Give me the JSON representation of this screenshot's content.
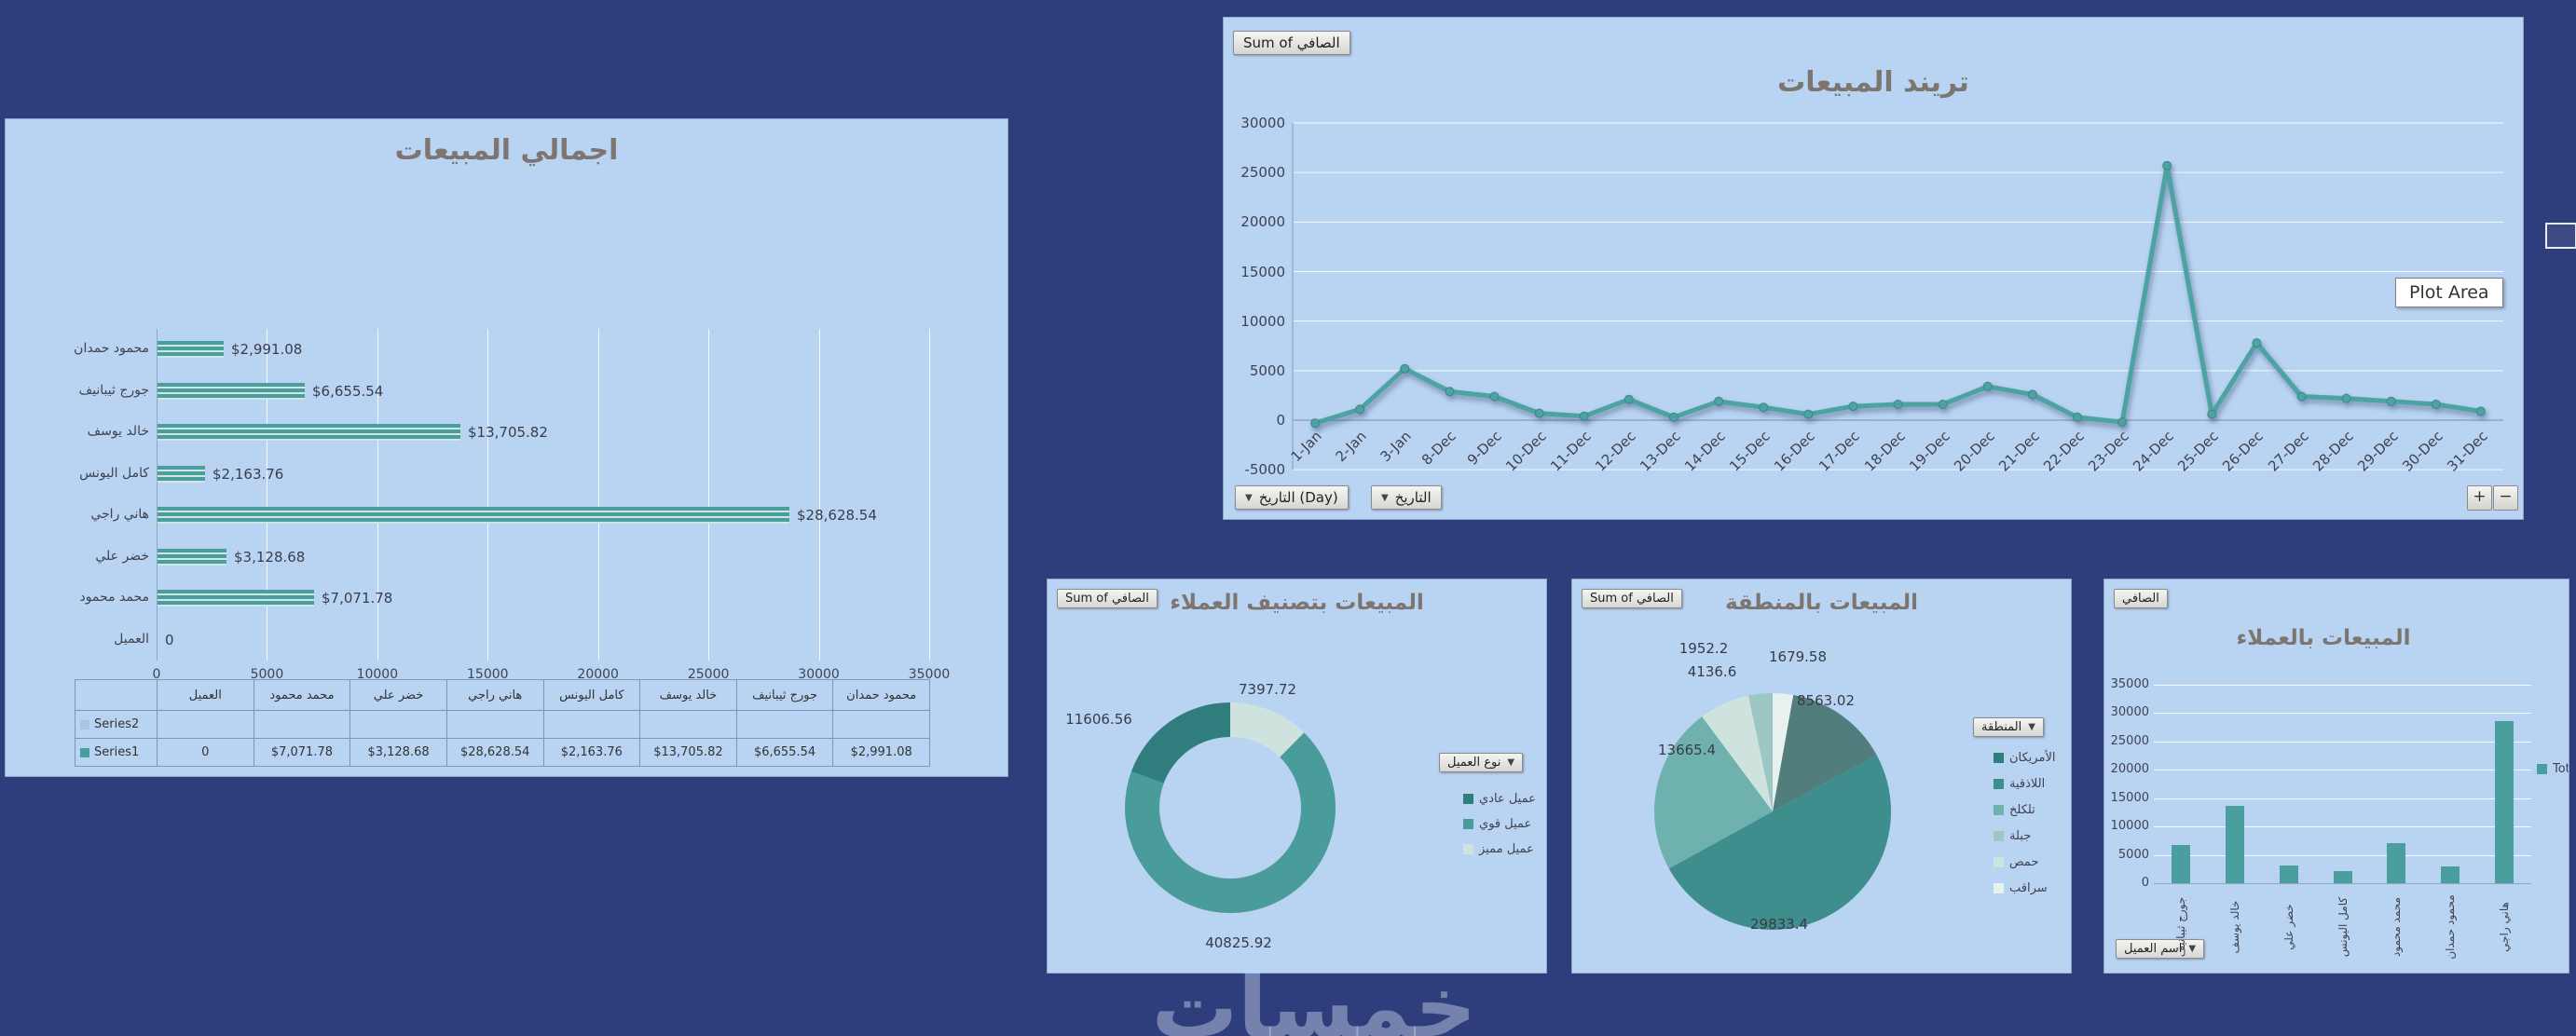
{
  "colors": {
    "background": "#2e3e7c",
    "panel": "#b9d3f2",
    "teal": "#4b9e9e",
    "teal_dark": "#2f7d7c",
    "teal_light": "#cfe3de",
    "title_text": "#7d756f"
  },
  "ui": {
    "watermark": "خمسات",
    "plot_area_tooltip": "Plot Area",
    "zoom_in": "+",
    "zoom_out": "−"
  },
  "chart_data": [
    {
      "id": "bar",
      "type": "bar",
      "orientation": "horizontal",
      "title": "اجمالي المبيعات",
      "categories": [
        "محمود حمدان",
        "جورج ثيبانيف",
        "خالد يوسف",
        "كامل اليونس",
        "هاني راجي",
        "خضر علي",
        "محمد محمود",
        "العميل"
      ],
      "values": [
        2991.08,
        6655.54,
        13705.82,
        2163.76,
        28628.54,
        3128.68,
        7071.78,
        0
      ],
      "value_labels": [
        "$2,991.08",
        "$6,655.54",
        "$13,705.82",
        "$2,163.76",
        "$28,628.54",
        "$3,128.68",
        "$7,071.78",
        "0"
      ],
      "x_ticks": [
        0,
        5000,
        10000,
        15000,
        20000,
        25000,
        30000,
        35000
      ],
      "xlim": [
        0,
        35000
      ],
      "table": {
        "corner": "",
        "columns": [
          "العميل",
          "محمد محمود",
          "خضر علي",
          "هاني راجي",
          "كامل اليونس",
          "خالد يوسف",
          "جورج ثيبانيف",
          "محمود حمدان"
        ],
        "series": [
          {
            "name": "Series2",
            "marker_color": "#a9c3e0",
            "values": [
              "",
              "",
              "",
              "",
              "",
              "",
              "",
              ""
            ]
          },
          {
            "name": "Series1",
            "marker_color": "#4b9e9e",
            "values": [
              "0",
              "$7,071.78",
              "$3,128.68",
              "$28,628.54",
              "$2,163.76",
              "$13,705.82",
              "$6,655.54",
              "$2,991.08"
            ]
          }
        ]
      }
    },
    {
      "id": "line",
      "type": "line",
      "title": "تريند المبيعات",
      "field_button": "Sum of الصافي",
      "axis_field_buttons": [
        "التاريخ (Day)",
        "التاريخ"
      ],
      "y_ticks": [
        30000,
        25000,
        20000,
        15000,
        10000,
        5000,
        0,
        -5000
      ],
      "ylim": [
        -5000,
        30000
      ],
      "x": [
        "1-Jan",
        "2-Jan",
        "3-Jan",
        "8-Dec",
        "9-Dec",
        "10-Dec",
        "11-Dec",
        "12-Dec",
        "13-Dec",
        "14-Dec",
        "15-Dec",
        "16-Dec",
        "17-Dec",
        "18-Dec",
        "19-Dec",
        "20-Dec",
        "21-Dec",
        "22-Dec",
        "23-Dec",
        "24-Dec",
        "25-Dec",
        "26-Dec",
        "27-Dec",
        "28-Dec",
        "29-Dec",
        "30-Dec",
        "31-Dec"
      ],
      "values": [
        -300,
        1100,
        5200,
        2900,
        2400,
        700,
        400,
        2100,
        300,
        1900,
        1300,
        600,
        1400,
        1600,
        1600,
        3400,
        2600,
        300,
        -200,
        25700,
        600,
        7800,
        2400,
        2200,
        1900,
        1600,
        900
      ]
    },
    {
      "id": "donut",
      "type": "pie",
      "donut": true,
      "title": "المبيعات بتصنيف العملاء",
      "field_button": "Sum of الصافي",
      "legend_button": "نوع العميل",
      "slices": [
        {
          "label": "7397.72",
          "value": 7397.72,
          "color": "#cfe3de"
        },
        {
          "label": "40825.92",
          "value": 40825.92,
          "color": "#4a9c9b"
        },
        {
          "label": "11606.56",
          "value": 11606.56,
          "color": "#2f7d7c"
        }
      ],
      "legend": [
        {
          "label": "عميل عادي",
          "color": "#2f7d7c"
        },
        {
          "label": "عميل قوي",
          "color": "#4a9c9b"
        },
        {
          "label": "عميل مميز",
          "color": "#cfe3de"
        }
      ]
    },
    {
      "id": "pie",
      "type": "pie",
      "donut": false,
      "title": "المبيعات بالمنطقة",
      "field_button": "Sum of الصافي",
      "legend_button": "المنطقة",
      "slices": [
        {
          "label": "1679.58",
          "value": 1679.58,
          "color": "#e9f1ee"
        },
        {
          "label": "8563.02",
          "value": 8563.02,
          "color": "#517e7c"
        },
        {
          "label": "29833.4",
          "value": 29833.4,
          "color": "#3e8e8d"
        },
        {
          "label": "13665.4",
          "value": 13665.4,
          "color": "#6fb1af"
        },
        {
          "label": "4136.6",
          "value": 4136.6,
          "color": "#cfe3de"
        },
        {
          "label": "1952.2",
          "value": 1952.2,
          "color": "#9cc7c2"
        }
      ],
      "legend": [
        {
          "label": "الأمريكان",
          "color": "#2f7d7c"
        },
        {
          "label": "اللاذقية",
          "color": "#3e8e8d"
        },
        {
          "label": "تلكلخ",
          "color": "#6fb1af"
        },
        {
          "label": "جبلة",
          "color": "#9cc7c2"
        },
        {
          "label": "حمص",
          "color": "#cfe3de"
        },
        {
          "label": "سراقب",
          "color": "#e9f1ee"
        }
      ]
    },
    {
      "id": "column",
      "type": "bar",
      "orientation": "vertical",
      "title": "المبيعات بالعملاء",
      "field_button": "الصافي",
      "axis_field_button": "اسم العميل",
      "categories": [
        "جورج ثيبانيف",
        "خالد يوسف",
        "خضر علي",
        "كامل اليونس",
        "محمد محمود",
        "محمود حمدان",
        "هاني راجي"
      ],
      "values": [
        6655.54,
        13705.82,
        3128.68,
        2163.76,
        7071.78,
        2991.08,
        28628.54
      ],
      "y_ticks": [
        35000,
        30000,
        25000,
        20000,
        15000,
        10000,
        5000,
        0
      ],
      "ylim": [
        0,
        35000
      ],
      "legend": [
        {
          "label": "Tot",
          "color": "#4b9e9e"
        }
      ]
    }
  ]
}
